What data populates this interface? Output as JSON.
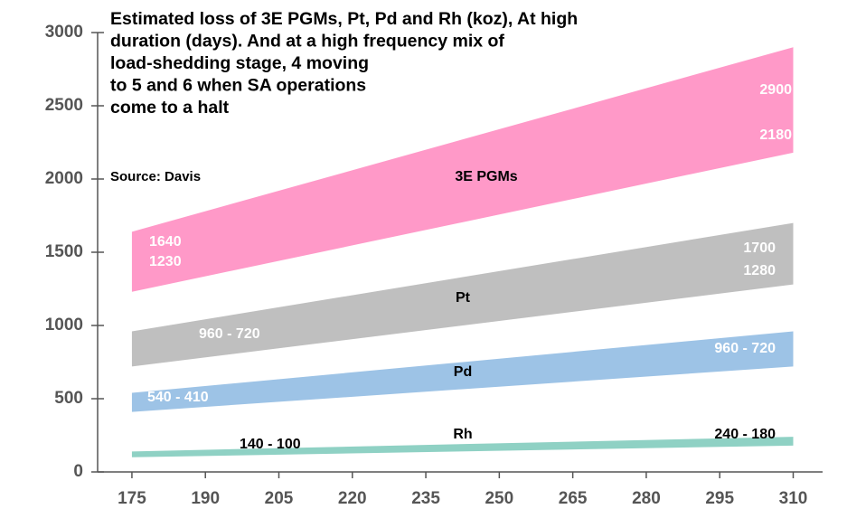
{
  "chart_data": {
    "type": "range_band",
    "title": [
      "Estimated loss of 3E PGMs, Pt, Pd and Rh (koz), At high",
      "duration (days). And at a high frequency mix of",
      "load-shedding stage, 4 moving",
      "to 5 and 6 when SA operations",
      "come to a halt"
    ],
    "source": "Source: Davis",
    "xlim": [
      168,
      316
    ],
    "xticks": [
      175,
      190,
      205,
      220,
      235,
      250,
      265,
      280,
      295,
      310
    ],
    "ylim": [
      0,
      3000
    ],
    "yticks": [
      0,
      500,
      1000,
      1500,
      2000,
      2500,
      3000
    ],
    "series": [
      {
        "name": "3E PGMs",
        "color": "#ff99c8",
        "x": [
          175,
          310
        ],
        "high": [
          1640,
          2900
        ],
        "low": [
          1230,
          2180
        ],
        "value_labels": []
      },
      {
        "name": "Pt",
        "color": "#bfbfbf",
        "x": [
          175,
          310
        ],
        "high": [
          960,
          1700
        ],
        "low": [
          720,
          1280
        ],
        "value_labels": [
          {
            "index": 0,
            "label": "960 - 720"
          }
        ]
      },
      {
        "name": "Pd",
        "color": "#9dc3e6",
        "x": [
          175,
          310
        ],
        "high": [
          540,
          960
        ],
        "low": [
          410,
          720
        ],
        "value_labels": [
          {
            "index": 0,
            "label": "540 - 410"
          },
          {
            "index": 1,
            "label": "960 - 720"
          }
        ]
      },
      {
        "name": "Rh",
        "color": "#8fd1c4",
        "x": [
          175,
          310
        ],
        "high": [
          140,
          240
        ],
        "low": [
          100,
          180
        ],
        "value_labels": [
          {
            "index": 0,
            "label": "140 - 100"
          },
          {
            "index": 1,
            "label": "240 - 180"
          }
        ]
      }
    ]
  }
}
